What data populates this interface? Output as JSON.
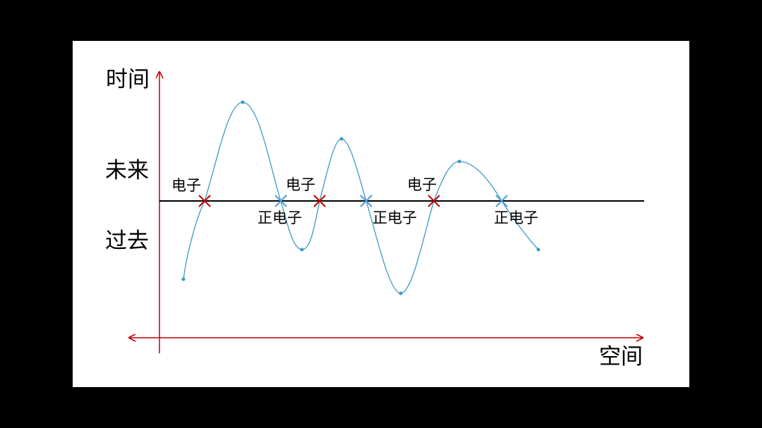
{
  "labels": {
    "y_axis": "时间",
    "future": "未来",
    "past": "过去",
    "x_axis": "空间"
  },
  "crossings": [
    {
      "type": "electron",
      "label": "电子"
    },
    {
      "type": "positron",
      "label": "正电子"
    },
    {
      "type": "electron",
      "label": "电子"
    },
    {
      "type": "positron",
      "label": "正电子"
    },
    {
      "type": "electron",
      "label": "电子"
    },
    {
      "type": "positron",
      "label": "正电子"
    }
  ],
  "colors": {
    "background": "#000000",
    "slide": "#ffffff",
    "axis": "#c00000",
    "curve": "#3a9ac4",
    "now_line": "#000000",
    "electron_mark": "#c00000",
    "positron_mark": "#4a9fd8",
    "text": "#000000"
  }
}
